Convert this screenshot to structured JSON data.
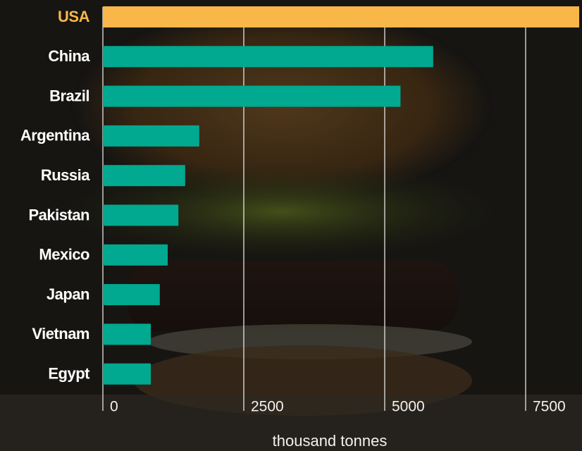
{
  "chart_data": {
    "type": "barh",
    "categories": [
      "USA",
      "China",
      "Brazil",
      "Argentina",
      "Russia",
      "Pakistan",
      "Mexico",
      "Japan",
      "Vietnam",
      "Egypt"
    ],
    "values": [
      8450,
      5860,
      5280,
      1710,
      1460,
      1340,
      1150,
      1010,
      850,
      850
    ],
    "color": "#00a98f",
    "colors": [
      "#f9b74a",
      "#00a98f",
      "#00a98f",
      "#00a98f",
      "#00a98f",
      "#00a98f",
      "#00a98f",
      "#00a98f",
      "#00a98f",
      "#00a98f"
    ],
    "xlabel": "thousand tonnes",
    "xlim": [
      0,
      8500
    ],
    "xticks": [
      0,
      2500,
      5000,
      7500
    ],
    "grid": true
  }
}
